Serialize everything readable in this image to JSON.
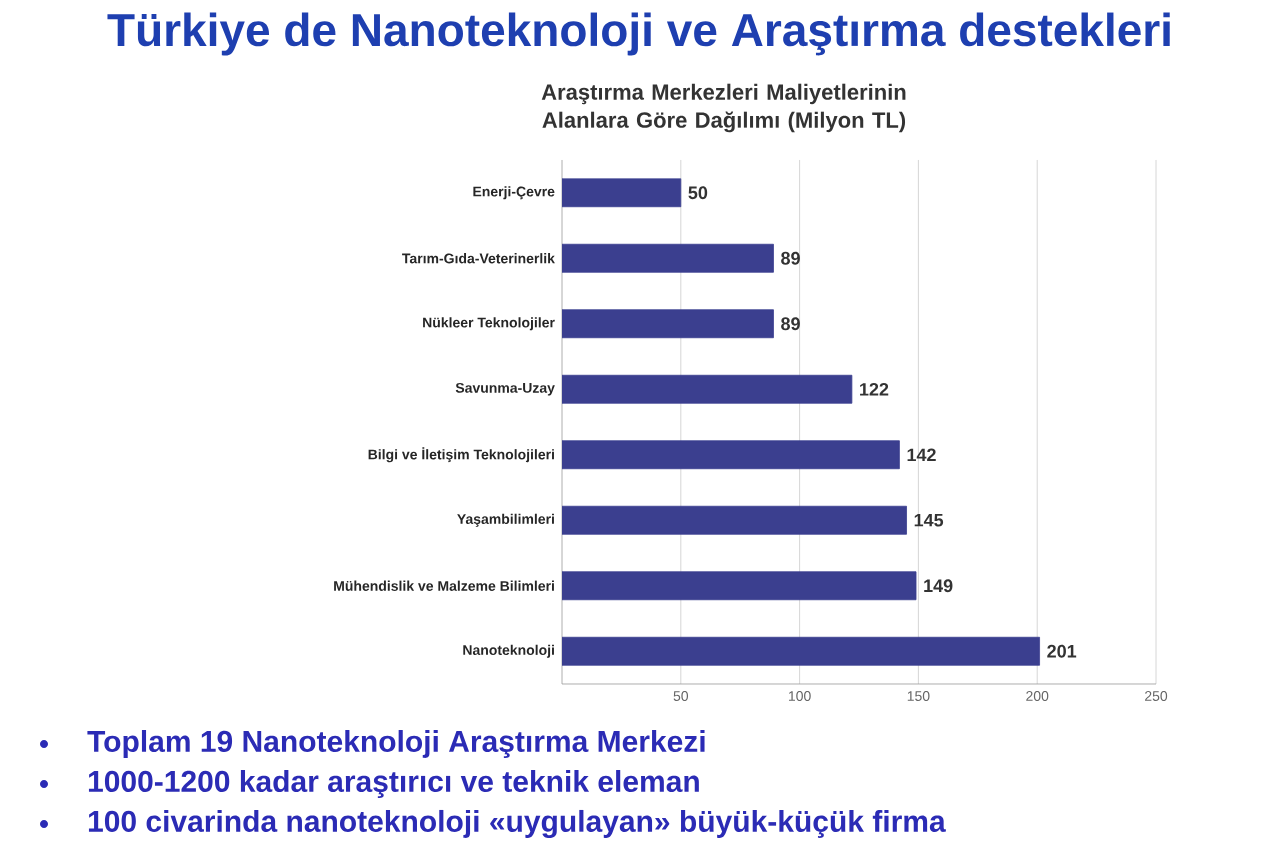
{
  "chart_data": {
    "type": "bar",
    "orientation": "horizontal",
    "title": "Türkiye de Nanoteknoloji ve Araştırma destekleri",
    "subtitle": "Araştırma Merkezleri Maliyetlerinin Alanlara Göre Dağılımı (Milyon TL)",
    "categories": [
      "Enerji-Çevre",
      "Tarım-Gıda-Veterinerlik",
      "Nükleer Teknolojiler",
      "Savunma-Uzay",
      "Bilgi ve İletişim Teknolojileri",
      "Yaşambilimleri",
      "Mühendislik ve Malzeme Bilimleri",
      "Nanoteknoloji"
    ],
    "values": [
      50,
      89,
      89,
      122,
      142,
      145,
      149,
      201
    ],
    "color": "#3b3f8f",
    "xlim": [
      0,
      250
    ],
    "xticks": [
      50,
      100,
      150,
      200,
      250
    ],
    "grid": "x",
    "data_labels": true,
    "annotations": [
      "Toplam 19 Nanoteknoloji Araştırma Merkezi",
      "1000-1200 kadar araştırıcı ve teknik eleman",
      "100 civarinda nanoteknoloji «uygulayan» büyük-küçük firma"
    ]
  }
}
